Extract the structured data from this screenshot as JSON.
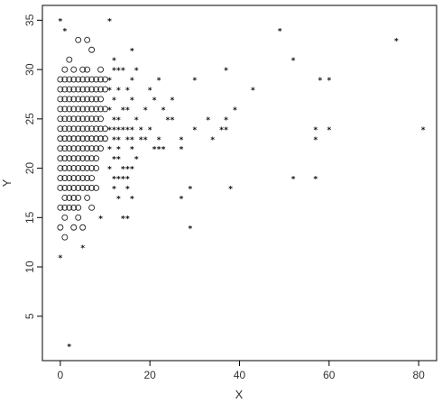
{
  "chart_data": {
    "type": "scatter",
    "title": "",
    "xlabel": "X",
    "ylabel": "Y",
    "xlim": [
      -4,
      84
    ],
    "ylim": [
      0.5,
      36.5
    ],
    "xticks": [
      0,
      20,
      40,
      60,
      80
    ],
    "yticks": [
      5,
      10,
      15,
      20,
      25,
      30,
      35
    ],
    "grid": false,
    "legend": "none",
    "series": [
      {
        "marker": "circle",
        "points": [
          [
            4,
            33
          ],
          [
            6,
            33
          ],
          [
            7,
            32
          ],
          [
            2,
            31
          ],
          [
            1,
            30
          ],
          [
            3,
            30
          ],
          [
            5,
            30
          ],
          [
            6,
            30
          ],
          [
            9,
            30
          ],
          [
            0,
            29
          ],
          [
            1,
            29
          ],
          [
            2,
            29
          ],
          [
            3,
            29
          ],
          [
            4,
            29
          ],
          [
            5,
            29
          ],
          [
            6,
            29
          ],
          [
            7,
            29
          ],
          [
            8,
            29
          ],
          [
            9,
            29
          ],
          [
            10,
            29
          ],
          [
            0,
            28
          ],
          [
            1,
            28
          ],
          [
            2,
            28
          ],
          [
            3,
            28
          ],
          [
            4,
            28
          ],
          [
            5,
            28
          ],
          [
            6,
            28
          ],
          [
            7,
            28
          ],
          [
            8,
            28
          ],
          [
            9,
            28
          ],
          [
            10,
            28
          ],
          [
            0,
            27
          ],
          [
            1,
            27
          ],
          [
            2,
            27
          ],
          [
            3,
            27
          ],
          [
            4,
            27
          ],
          [
            5,
            27
          ],
          [
            6,
            27
          ],
          [
            7,
            27
          ],
          [
            8,
            27
          ],
          [
            9,
            27
          ],
          [
            0,
            26
          ],
          [
            1,
            26
          ],
          [
            2,
            26
          ],
          [
            3,
            26
          ],
          [
            4,
            26
          ],
          [
            5,
            26
          ],
          [
            6,
            26
          ],
          [
            7,
            26
          ],
          [
            8,
            26
          ],
          [
            9,
            26
          ],
          [
            10,
            26
          ],
          [
            0,
            25
          ],
          [
            1,
            25
          ],
          [
            2,
            25
          ],
          [
            3,
            25
          ],
          [
            4,
            25
          ],
          [
            5,
            25
          ],
          [
            6,
            25
          ],
          [
            7,
            25
          ],
          [
            8,
            25
          ],
          [
            9,
            25
          ],
          [
            0,
            24
          ],
          [
            1,
            24
          ],
          [
            2,
            24
          ],
          [
            3,
            24
          ],
          [
            4,
            24
          ],
          [
            5,
            24
          ],
          [
            6,
            24
          ],
          [
            7,
            24
          ],
          [
            8,
            24
          ],
          [
            9,
            24
          ],
          [
            10,
            24
          ],
          [
            0,
            23
          ],
          [
            1,
            23
          ],
          [
            2,
            23
          ],
          [
            3,
            23
          ],
          [
            4,
            23
          ],
          [
            5,
            23
          ],
          [
            6,
            23
          ],
          [
            7,
            23
          ],
          [
            8,
            23
          ],
          [
            9,
            23
          ],
          [
            10,
            23
          ],
          [
            0,
            22
          ],
          [
            1,
            22
          ],
          [
            2,
            22
          ],
          [
            3,
            22
          ],
          [
            4,
            22
          ],
          [
            5,
            22
          ],
          [
            6,
            22
          ],
          [
            7,
            22
          ],
          [
            8,
            22
          ],
          [
            9,
            22
          ],
          [
            0,
            21
          ],
          [
            1,
            21
          ],
          [
            2,
            21
          ],
          [
            3,
            21
          ],
          [
            4,
            21
          ],
          [
            5,
            21
          ],
          [
            6,
            21
          ],
          [
            7,
            21
          ],
          [
            8,
            21
          ],
          [
            0,
            20
          ],
          [
            1,
            20
          ],
          [
            2,
            20
          ],
          [
            3,
            20
          ],
          [
            4,
            20
          ],
          [
            5,
            20
          ],
          [
            6,
            20
          ],
          [
            7,
            20
          ],
          [
            8,
            20
          ],
          [
            0,
            19
          ],
          [
            1,
            19
          ],
          [
            2,
            19
          ],
          [
            3,
            19
          ],
          [
            4,
            19
          ],
          [
            5,
            19
          ],
          [
            6,
            19
          ],
          [
            7,
            19
          ],
          [
            0,
            18
          ],
          [
            1,
            18
          ],
          [
            2,
            18
          ],
          [
            3,
            18
          ],
          [
            4,
            18
          ],
          [
            5,
            18
          ],
          [
            6,
            18
          ],
          [
            7,
            18
          ],
          [
            8,
            18
          ],
          [
            1,
            17
          ],
          [
            2,
            17
          ],
          [
            3,
            17
          ],
          [
            4,
            17
          ],
          [
            6,
            17
          ],
          [
            0,
            16
          ],
          [
            1,
            16
          ],
          [
            2,
            16
          ],
          [
            3,
            16
          ],
          [
            4,
            16
          ],
          [
            7,
            16
          ],
          [
            1,
            15
          ],
          [
            4,
            15
          ],
          [
            0,
            14
          ],
          [
            3,
            14
          ],
          [
            5,
            14
          ],
          [
            1,
            13
          ]
        ]
      },
      {
        "marker": "star",
        "points": [
          [
            0,
            35
          ],
          [
            11,
            35
          ],
          [
            1,
            34
          ],
          [
            16,
            32
          ],
          [
            12,
            31
          ],
          [
            12,
            30
          ],
          [
            13,
            30
          ],
          [
            14,
            30
          ],
          [
            17,
            30
          ],
          [
            37,
            30
          ],
          [
            11,
            29
          ],
          [
            16,
            29
          ],
          [
            22,
            29
          ],
          [
            30,
            29
          ],
          [
            52,
            31
          ],
          [
            49,
            34
          ],
          [
            75,
            33
          ],
          [
            58,
            29
          ],
          [
            60,
            29
          ],
          [
            11,
            28
          ],
          [
            13,
            28
          ],
          [
            15,
            28
          ],
          [
            20,
            28
          ],
          [
            43,
            28
          ],
          [
            12,
            27
          ],
          [
            16,
            27
          ],
          [
            21,
            27
          ],
          [
            25,
            27
          ],
          [
            11,
            26
          ],
          [
            14,
            26
          ],
          [
            15,
            26
          ],
          [
            19,
            26
          ],
          [
            23,
            26
          ],
          [
            39,
            26
          ],
          [
            12,
            25
          ],
          [
            13,
            25
          ],
          [
            17,
            25
          ],
          [
            24,
            25
          ],
          [
            25,
            25
          ],
          [
            33,
            25
          ],
          [
            37,
            25
          ],
          [
            11,
            24
          ],
          [
            12,
            24
          ],
          [
            13,
            24
          ],
          [
            14,
            24
          ],
          [
            15,
            24
          ],
          [
            16,
            24
          ],
          [
            18,
            24
          ],
          [
            20,
            24
          ],
          [
            30,
            24
          ],
          [
            36,
            24
          ],
          [
            37,
            24
          ],
          [
            57,
            24
          ],
          [
            60,
            24
          ],
          [
            81,
            24
          ],
          [
            12,
            23
          ],
          [
            13,
            23
          ],
          [
            15,
            23
          ],
          [
            16,
            23
          ],
          [
            18,
            23
          ],
          [
            19,
            23
          ],
          [
            22,
            23
          ],
          [
            27,
            23
          ],
          [
            34,
            23
          ],
          [
            57,
            23
          ],
          [
            11,
            22
          ],
          [
            13,
            22
          ],
          [
            16,
            22
          ],
          [
            21,
            22
          ],
          [
            22,
            22
          ],
          [
            23,
            22
          ],
          [
            27,
            22
          ],
          [
            12,
            21
          ],
          [
            13,
            21
          ],
          [
            17,
            21
          ],
          [
            11,
            20
          ],
          [
            14,
            20
          ],
          [
            15,
            20
          ],
          [
            16,
            20
          ],
          [
            12,
            19
          ],
          [
            13,
            19
          ],
          [
            14,
            19
          ],
          [
            15,
            19
          ],
          [
            52,
            19
          ],
          [
            57,
            19
          ],
          [
            12,
            18
          ],
          [
            15,
            18
          ],
          [
            29,
            18
          ],
          [
            38,
            18
          ],
          [
            13,
            17
          ],
          [
            16,
            17
          ],
          [
            27,
            17
          ],
          [
            14,
            15
          ],
          [
            15,
            15
          ],
          [
            9,
            15
          ],
          [
            29,
            14
          ],
          [
            5,
            12
          ],
          [
            0,
            11
          ],
          [
            2,
            2
          ]
        ]
      }
    ]
  }
}
